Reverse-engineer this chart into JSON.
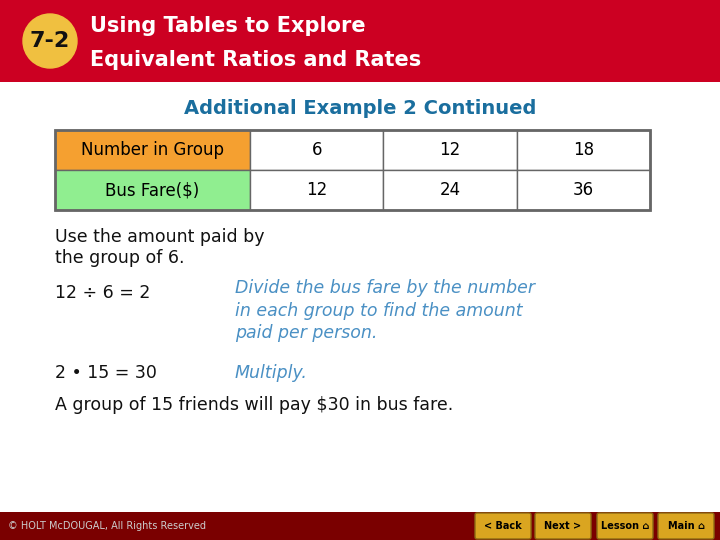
{
  "header_bg": "#CC0022",
  "header_text_color": "#FFFFFF",
  "badge_bg": "#F0C040",
  "badge_text": "7-2",
  "title_line1": "Using Tables to Explore",
  "title_line2": "Equivalent Ratios and Rates",
  "subtitle": "Additional Example 2 Continued",
  "subtitle_color": "#1A6E9E",
  "table_header1": "Number in Group",
  "table_header2": "Bus Fare($)",
  "table_row1_label_color": "#F5A030",
  "table_row2_label_color": "#90EE90",
  "table_values_row1": [
    "6",
    "12",
    "18"
  ],
  "table_values_row2": [
    "12",
    "24",
    "36"
  ],
  "body_text1_line1": "Use the amount paid by",
  "body_text1_line2": "the group of 6.",
  "equation1_black": "12 ÷ 6 = 2",
  "equation1_blue_line1": "Divide the bus fare by the number",
  "equation1_blue_line2": "in each group to find the amount",
  "equation1_blue_line3": "paid per person.",
  "equation2_black": "2 • 15 = 30",
  "equation2_blue": "Multiply.",
  "conclusion": "A group of 15 friends will pay $30 in bus fare.",
  "footer_bg": "#7A0000",
  "footer_text": "© HOLT McDOUGAL, All Rights Reserved",
  "footer_text_color": "#CCCCCC",
  "button_bg": "#DAA520",
  "button_border": "#8B6914",
  "blue_text_color": "#4A90C4",
  "black_text_color": "#111111",
  "table_border_color": "#666666",
  "white": "#FFFFFF",
  "bg_color": "#FFFFFF"
}
